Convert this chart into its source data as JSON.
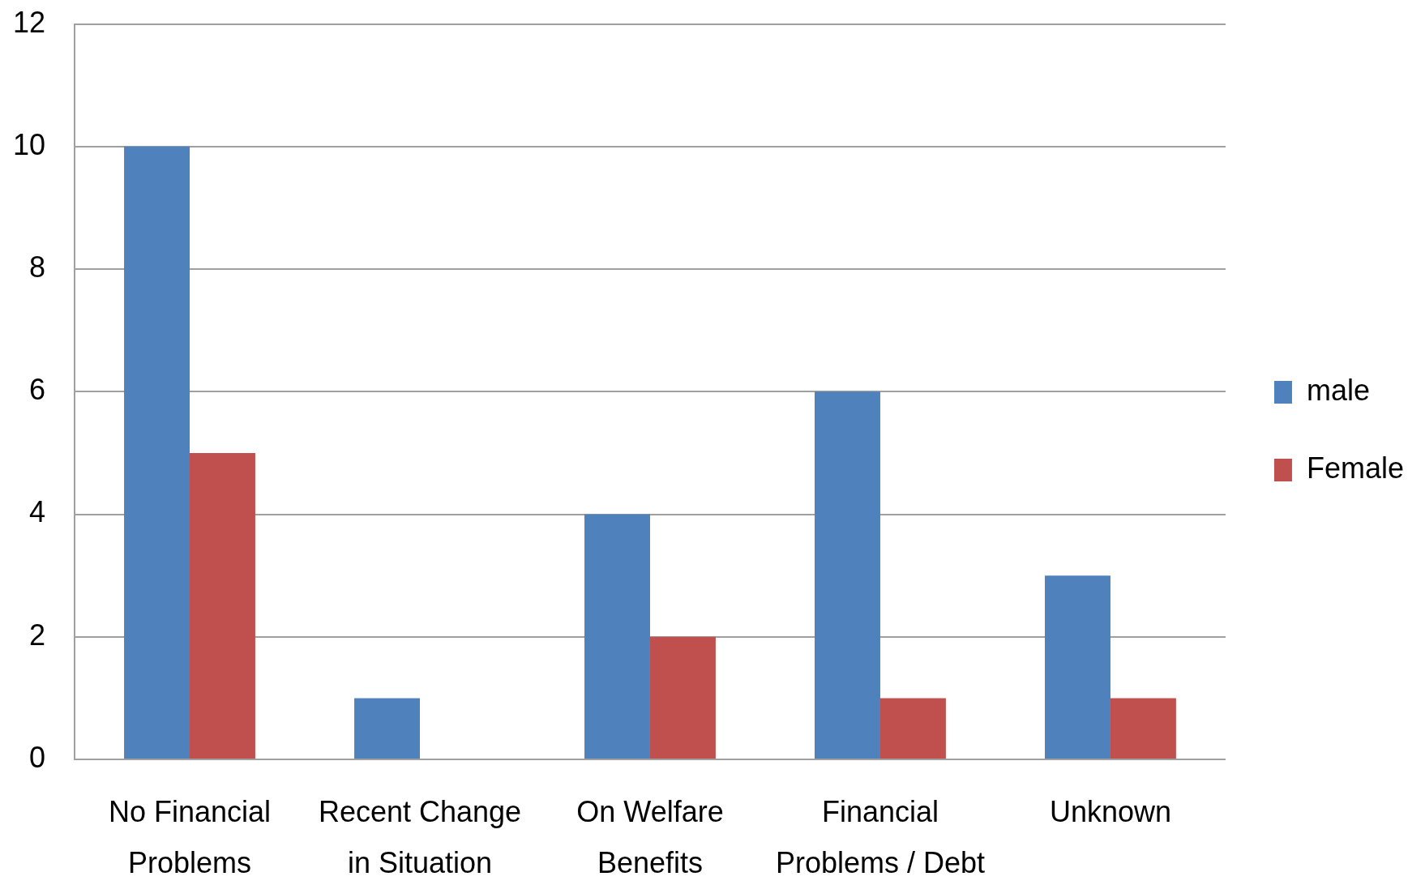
{
  "chart_data": {
    "type": "bar",
    "categories": [
      "No Financial Problems",
      "Recent Change in Situation",
      "On Welfare Benefits",
      "Financial Problems / Debt",
      "Unknown"
    ],
    "series": [
      {
        "name": "male",
        "color": "#4f81bd",
        "values": [
          10,
          1,
          4,
          6,
          3
        ]
      },
      {
        "name": "Female",
        "color": "#c0504d",
        "values": [
          5,
          0,
          2,
          1,
          1
        ]
      }
    ],
    "ylim": [
      0,
      12
    ],
    "yticks": [
      0,
      2,
      4,
      6,
      8,
      10,
      12
    ],
    "grid": "y",
    "legend": "right"
  }
}
